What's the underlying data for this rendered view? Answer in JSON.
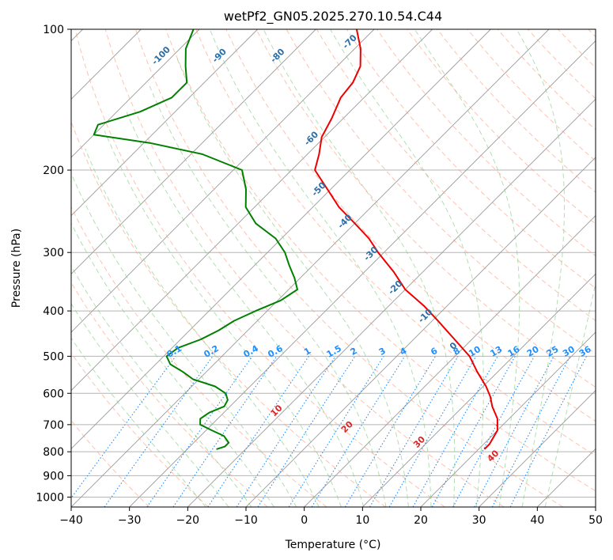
{
  "chart_data": {
    "type": "line",
    "title": "wetPf2_GN05.2025.270.10.54.C44",
    "xlabel": "Temperature (°C)",
    "ylabel": "Pressure (hPa)",
    "xlim": [
      -40,
      50
    ],
    "ylim_hpa": [
      1050,
      100
    ],
    "y_scale": "log",
    "grid": true,
    "x_ticks": [
      -40,
      -30,
      -20,
      -10,
      0,
      10,
      20,
      30,
      40,
      50
    ],
    "y_ticks": [
      100,
      200,
      300,
      400,
      500,
      600,
      700,
      800,
      900,
      1000
    ],
    "skew_deg": 45,
    "colors": {
      "temperature": "#ee0000",
      "dewpoint": "#008000",
      "isotherm": "#9a9a9a",
      "dry_adiabat": "#ff9a7a",
      "moist_adiabat": "#7fc97f",
      "mixing_ratio": "#1f8fff",
      "isotherm_label": "#2c6ea8",
      "adiabat_label": "#d62728"
    },
    "isotherm_labels": [
      "-100",
      "-90",
      "-80",
      "-70",
      "-60",
      "-50",
      "-40",
      "-30",
      "-20",
      "-10",
      "0"
    ],
    "isotherm_label_values": [
      -100,
      -90,
      -80,
      -70,
      -60,
      -50,
      -40,
      -30,
      -20,
      -10,
      0
    ],
    "dry_adiabat_labels": [
      "10",
      "20",
      "30",
      "40"
    ],
    "dry_adiabat_label_values": [
      10,
      20,
      30,
      40
    ],
    "mixing_ratio_labels": [
      "0.1",
      "0.2",
      "0.4",
      "0.6",
      "1",
      "1.5",
      "2",
      "3",
      "4",
      "6",
      "8",
      "10",
      "13",
      "16",
      "20",
      "25",
      "30",
      "36"
    ],
    "mixing_ratio_values": [
      0.1,
      0.2,
      0.4,
      0.6,
      1,
      1.5,
      2,
      3,
      4,
      6,
      8,
      10,
      13,
      16,
      20,
      25,
      30,
      36
    ],
    "series": [
      {
        "key": "temperature",
        "pressure_hpa": [
          790,
          770,
          720,
          680,
          640,
          610,
          580,
          540,
          500,
          460,
          420,
          390,
          360,
          330,
          300,
          280,
          260,
          240,
          220,
          200,
          185,
          170,
          155,
          140,
          130,
          120,
          110,
          100
        ],
        "temp_c": [
          21.0,
          21.0,
          20.0,
          18.0,
          15.0,
          13.0,
          10.5,
          6.5,
          2.5,
          -3.0,
          -9.0,
          -14.0,
          -20.0,
          -25.0,
          -31.0,
          -35.0,
          -40.0,
          -45.5,
          -50.5,
          -56.0,
          -58.0,
          -60.5,
          -62.0,
          -64.0,
          -64.5,
          -66.0,
          -69.0,
          -73.0
        ]
      },
      {
        "key": "dewpoint",
        "pressure_hpa": [
          790,
          780,
          765,
          740,
          720,
          700,
          680,
          660,
          640,
          620,
          600,
          580,
          560,
          540,
          520,
          500,
          480,
          460,
          440,
          420,
          400,
          380,
          360,
          340,
          320,
          300,
          280,
          260,
          240,
          220,
          200,
          185,
          175,
          168,
          160,
          150,
          140,
          130,
          120,
          110,
          100
        ],
        "temp_c": [
          -25.0,
          -24.0,
          -24.0,
          -26.0,
          -29.0,
          -32.0,
          -33.0,
          -32.5,
          -31.0,
          -31.5,
          -33.0,
          -36.0,
          -41.0,
          -44.0,
          -47.5,
          -49.5,
          -49.0,
          -46.5,
          -45.0,
          -44.0,
          -42.0,
          -39.5,
          -38.5,
          -41.0,
          -44.0,
          -47.0,
          -51.0,
          -57.0,
          -61.5,
          -64.5,
          -68.5,
          -78.0,
          -89.0,
          -100.0,
          -101.0,
          -96.0,
          -93.0,
          -93.0,
          -96.0,
          -99.0,
          -101.0
        ]
      }
    ]
  }
}
